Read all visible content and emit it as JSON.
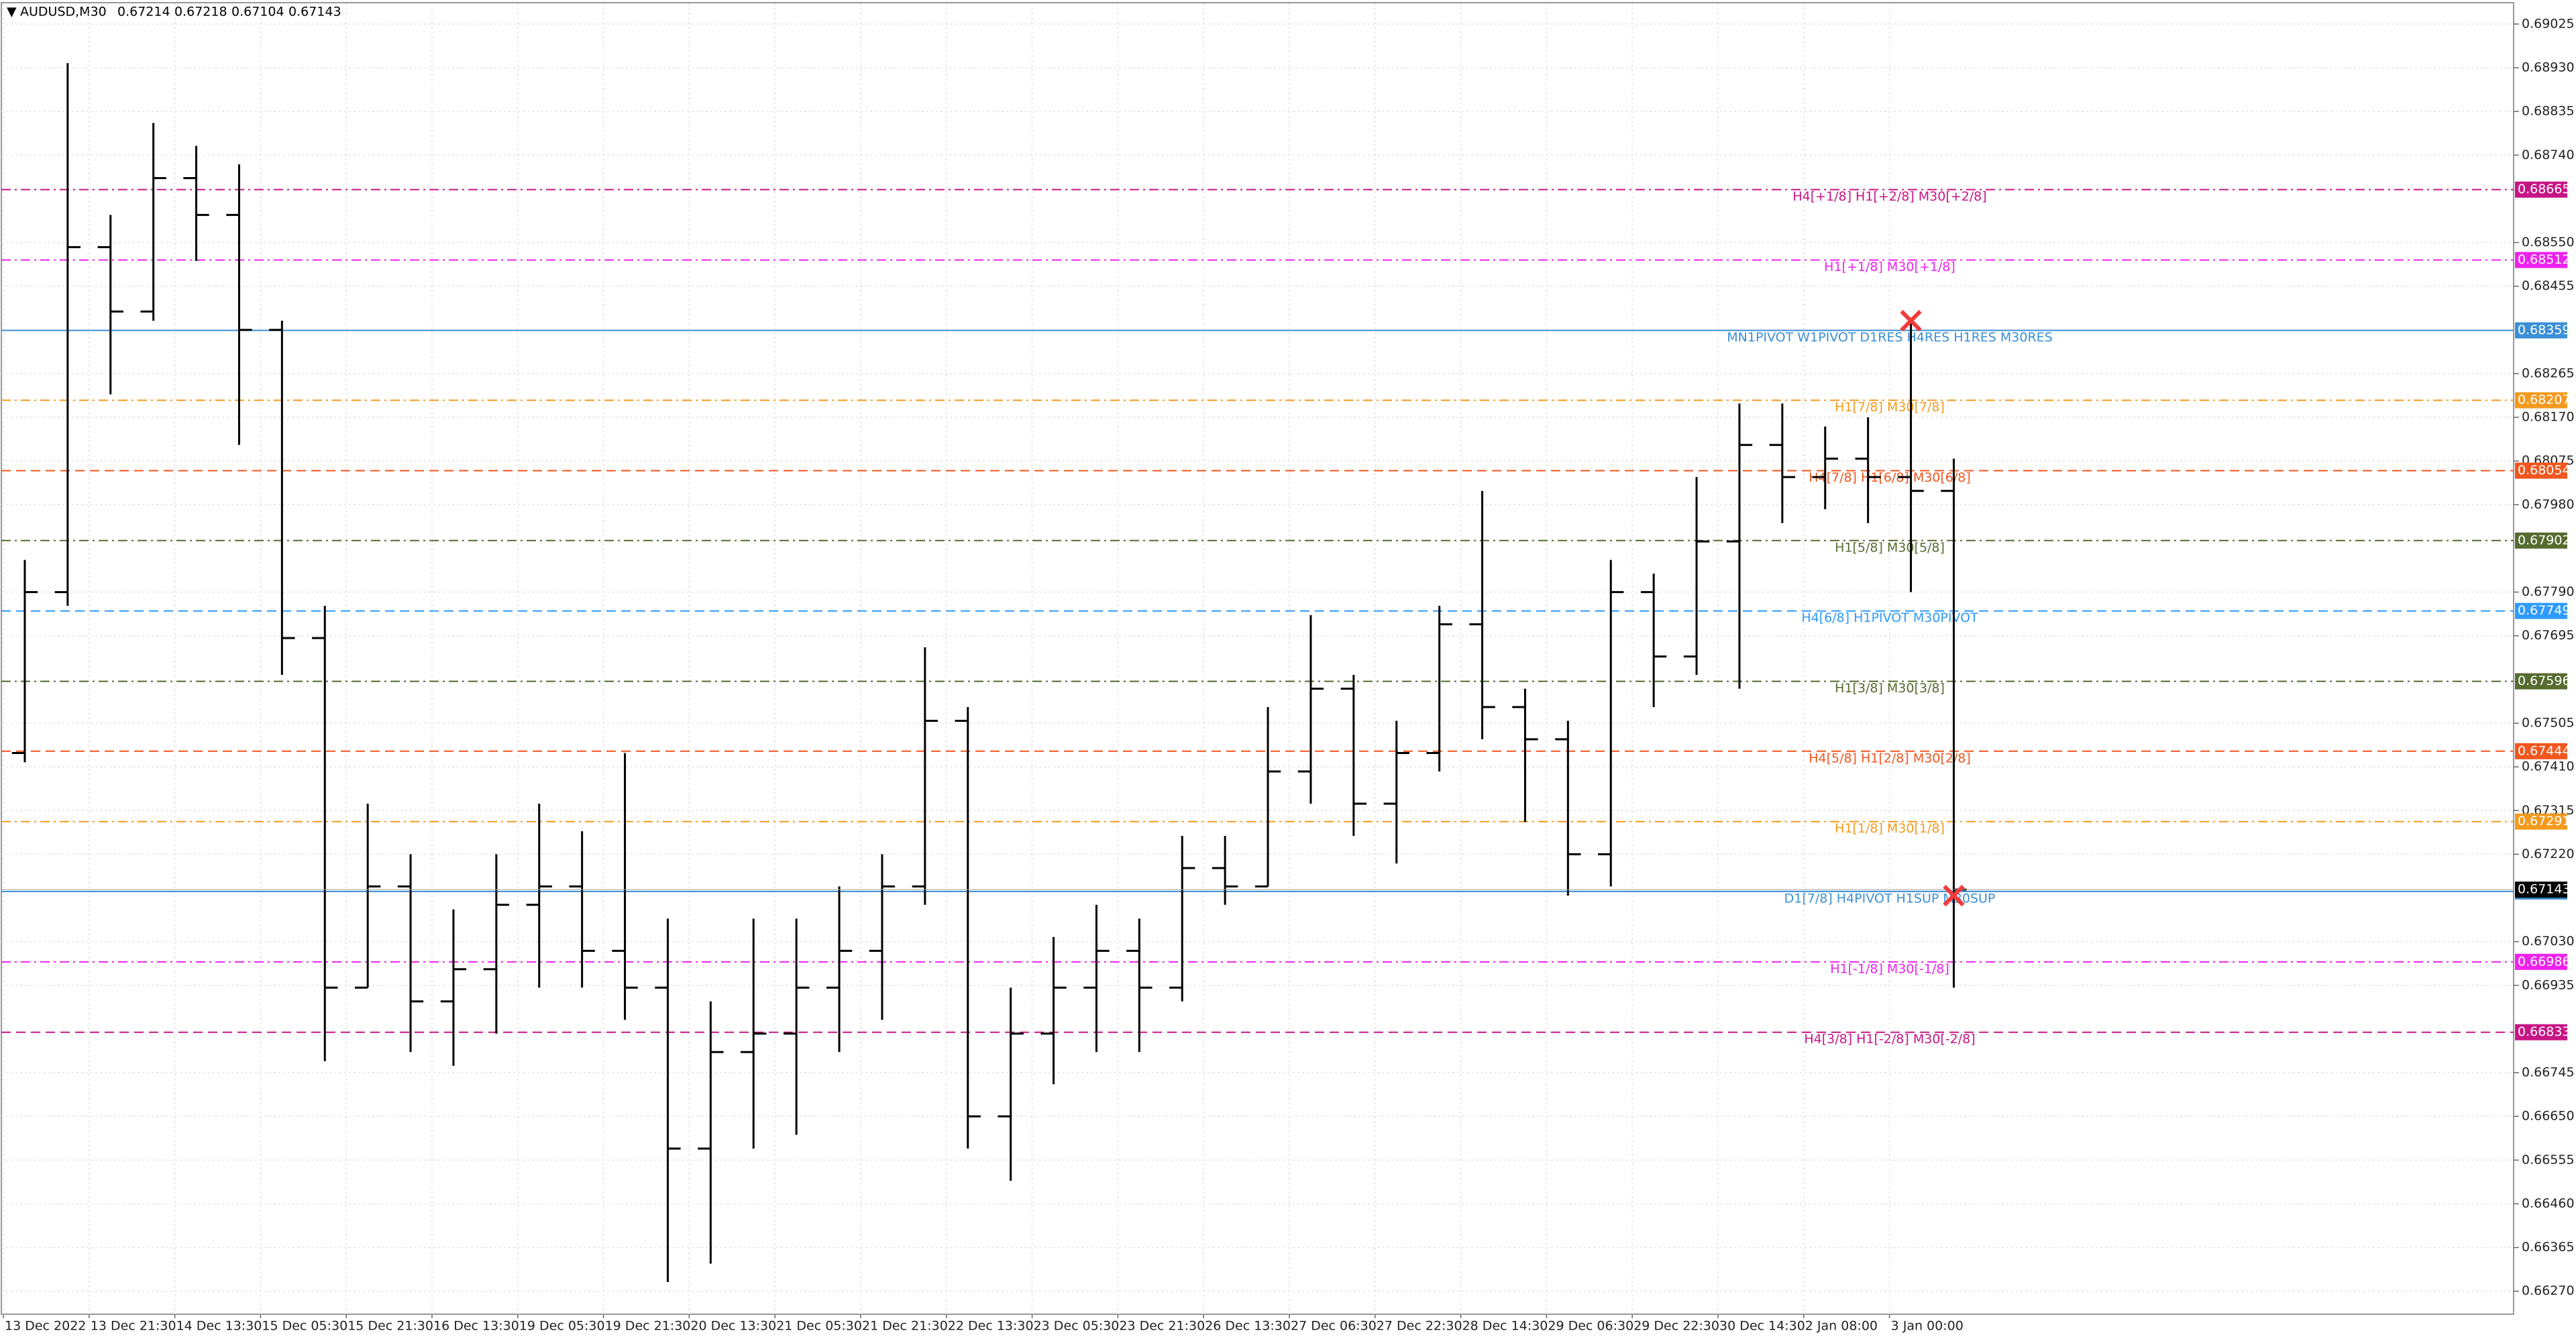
{
  "chart_data": {
    "type": "ohlc",
    "symbol": "AUDUSD,M30",
    "header_prices": [
      0.67214,
      0.67218,
      0.67104,
      0.67143
    ],
    "categories": [
      "13 Dec 2022",
      null,
      "13 Dec 21:30",
      null,
      "14 Dec 13:30",
      null,
      "15 Dec 05:30",
      null,
      "15 Dec 21:30",
      null,
      "16 Dec 13:30",
      null,
      "19 Dec 05:30",
      null,
      "19 Dec 21:30",
      null,
      "20 Dec 13:30",
      null,
      "21 Dec 05:30",
      null,
      "21 Dec 21:30",
      null,
      "22 Dec 13:30",
      null,
      "23 Dec 05:30",
      null,
      "23 Dec 21:30",
      null,
      "26 Dec 13:30",
      null,
      "27 Dec 06:30",
      null,
      "27 Dec 22:30",
      null,
      "28 Dec 14:30",
      null,
      "29 Dec 06:30",
      null,
      "29 Dec 22:30",
      null,
      "30 Dec 14:30",
      null,
      "2 Jan 08:00",
      null,
      "3 Jan 00:00",
      null
    ],
    "open": [
      0.6744,
      0.6779,
      0.6854,
      0.684,
      0.6869,
      0.6861,
      0.6836,
      0.6769,
      0.6693,
      0.6715,
      0.669,
      0.6697,
      0.6711,
      0.6715,
      0.6701,
      0.6693,
      0.6658,
      0.6679,
      0.6683,
      0.6693,
      0.6701,
      0.6715,
      0.6751,
      0.6665,
      0.6683,
      0.6693,
      0.6701,
      0.6693,
      0.6719,
      0.6715,
      0.674,
      0.6758,
      0.6733,
      0.6744,
      0.6772,
      0.6754,
      0.6747,
      0.6722,
      0.6779,
      0.6765,
      0.679,
      0.6811,
      0.6804,
      0.6808,
      0.6804,
      0.6801
    ],
    "high": [
      0.6786,
      0.6894,
      0.6861,
      0.6881,
      0.6876,
      0.6872,
      0.6838,
      0.6776,
      0.6733,
      0.6722,
      0.671,
      0.6722,
      0.6733,
      0.6727,
      0.6744,
      0.6708,
      0.669,
      0.6708,
      0.6708,
      0.6715,
      0.6722,
      0.6767,
      0.6754,
      0.6693,
      0.6704,
      0.6711,
      0.6708,
      0.6726,
      0.6726,
      0.6754,
      0.6774,
      0.6761,
      0.6751,
      0.6776,
      0.6801,
      0.6758,
      0.6751,
      0.6786,
      0.6783,
      0.6804,
      0.682,
      0.682,
      0.6815,
      0.6817,
      0.6838,
      0.6808
    ],
    "low": [
      0.6742,
      0.6776,
      0.6822,
      0.6838,
      0.6851,
      0.6811,
      0.6761,
      0.6677,
      0.6693,
      0.6679,
      0.6676,
      0.6683,
      0.6693,
      0.6693,
      0.6686,
      0.6629,
      0.6633,
      0.6658,
      0.6661,
      0.6679,
      0.6686,
      0.6711,
      0.6658,
      0.6651,
      0.6672,
      0.6679,
      0.6679,
      0.669,
      0.6711,
      0.6715,
      0.6733,
      0.6726,
      0.672,
      0.674,
      0.6747,
      0.6729,
      0.6713,
      0.6715,
      0.6754,
      0.6761,
      0.6758,
      0.6794,
      0.6797,
      0.6794,
      0.6779,
      0.6693
    ],
    "close": [
      0.6779,
      0.6854,
      0.684,
      0.6869,
      0.6861,
      0.6836,
      0.6769,
      0.6693,
      0.6715,
      0.669,
      0.6697,
      0.6711,
      0.6715,
      0.6701,
      0.6693,
      0.6658,
      0.6679,
      0.6683,
      0.6693,
      0.6701,
      0.6715,
      0.6751,
      0.6665,
      0.6683,
      0.6693,
      0.6701,
      0.6693,
      0.6719,
      0.6715,
      0.674,
      0.6758,
      0.6733,
      0.6744,
      0.6772,
      0.6754,
      0.6747,
      0.6722,
      0.6779,
      0.6765,
      0.679,
      0.6811,
      0.6804,
      0.6808,
      0.6804,
      0.6801,
      0.67143
    ],
    "color": "#000000",
    "current_price": 0.67143,
    "ylim": [
      0.6622,
      0.6907
    ],
    "yticks": [
      0.69025,
      {
        "value": 0.6893,
        "label": "0.68930"
      },
      0.68835,
      {
        "value": 0.6874,
        "label": "0.68740"
      },
      {
        "value": 0.6855,
        "label": "0.68550"
      },
      0.68455,
      0.68265,
      {
        "value": 0.6817,
        "label": "0.68170"
      },
      0.68075,
      {
        "value": 0.6798,
        "label": "0.67980"
      },
      {
        "value": 0.6779,
        "label": "0.67790"
      },
      0.67695,
      0.67505,
      {
        "value": 0.6741,
        "label": "0.67410"
      },
      0.67315,
      {
        "value": 0.6722,
        "label": "0.67220"
      },
      {
        "value": 0.6703,
        "label": "0.67030"
      },
      0.66935,
      0.66745,
      {
        "value": 0.6665,
        "label": "0.66650"
      },
      0.66555,
      {
        "value": 0.6646,
        "label": "0.66460"
      },
      0.66365,
      {
        "value": 0.6627,
        "label": "0.66270"
      }
    ],
    "grid": true,
    "levels": [
      {
        "label": "H4[+1/8] H1[+2/8] M30[+2/8]",
        "value": 0.68665,
        "color": "#c71585",
        "style": "dashdot"
      },
      {
        "label": "H1[+1/8] M30[+1/8]",
        "value": 0.68512,
        "color": "#ee22ee",
        "style": "dashdot"
      },
      {
        "label": "MN1PIVOT W1PIVOT D1RES H4RES H1RES M30RES",
        "value": 0.68359,
        "color": "#3a8fd6",
        "style": "solid"
      },
      {
        "label": "H1[7/8] M30[7/8]",
        "value": 0.68207,
        "color": "#f39a1e",
        "style": "dashdot"
      },
      {
        "label": "H4[7/8] H1[6/8] M30[6/8]",
        "value": 0.68054,
        "color": "#f0561e",
        "style": "dash"
      },
      {
        "label": "H1[5/8] M30[5/8]",
        "value": 0.67902,
        "color": "#556b2f",
        "style": "dashdot"
      },
      {
        "label": "H4[6/8] H1PIVOT M30PIVOT",
        "value": 0.67749,
        "color": "#2e9afe",
        "style": "dash"
      },
      {
        "label": "H1[3/8] M30[3/8]",
        "value": 0.67596,
        "color": "#556b2f",
        "style": "dashdot"
      },
      {
        "label": "H4[5/8] H1[2/8] M30[2/8]",
        "value": 0.67444,
        "color": "#f0561e",
        "style": "dash"
      },
      {
        "label": "H1[1/8] M30[1/8]",
        "value": 0.67291,
        "color": "#f39a1e",
        "style": "dashdot"
      },
      {
        "label": "D1[7/8] H4PIVOT H1SUP M30SUP",
        "value": 0.67139,
        "color": "#3a8fd6",
        "style": "solid"
      },
      {
        "label": "H1[-1/8] M30[-1/8]",
        "value": 0.66986,
        "color": "#ee22ee",
        "style": "dashdot"
      },
      {
        "label": "H4[3/8] H1[-2/8] M30[-2/8]",
        "value": 0.66833,
        "color": "#c71585",
        "style": "dash"
      }
    ],
    "markers": [
      {
        "at": 44,
        "value": 0.6838,
        "color": "#f03c3c"
      },
      {
        "at": 45,
        "value": 0.6713,
        "color": "#f03c3c"
      }
    ]
  }
}
